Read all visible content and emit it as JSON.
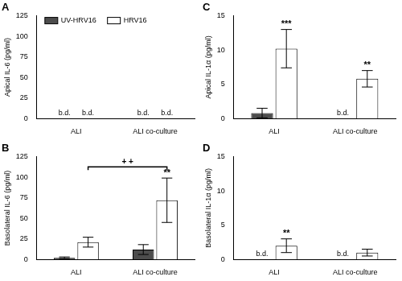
{
  "chart_data": [
    {
      "type": "bar",
      "title": "A",
      "y_label": "Apical IL-6 (pg/ml)",
      "categories": [
        "ALI",
        "ALI co-culture"
      ],
      "ylim": [
        0,
        125
      ],
      "yticks": [
        0,
        25,
        50,
        75,
        100,
        125
      ],
      "grid": false,
      "legend": "upper left",
      "series": [
        {
          "name": "UV-HRV16",
          "color": "#4d4d4d",
          "values": [
            null,
            null
          ],
          "errors": [
            null,
            null
          ],
          "value_labels": [
            "b.d.",
            "b.d."
          ]
        },
        {
          "name": "HRV16",
          "color": "#ffffff",
          "values": [
            null,
            null
          ],
          "errors": [
            null,
            null
          ],
          "value_labels": [
            "b.d.",
            "b.d."
          ]
        }
      ]
    },
    {
      "type": "bar",
      "title": "B",
      "y_label": "Basolateral IL-6 (pg/ml)",
      "categories": [
        "ALI",
        "ALI co-culture"
      ],
      "ylim": [
        0,
        125
      ],
      "yticks": [
        0,
        25,
        50,
        75,
        100,
        125
      ],
      "grid": false,
      "series": [
        {
          "name": "UV-HRV16",
          "color": "#4d4d4d",
          "values": [
            2,
            12
          ],
          "errors": [
            1,
            6
          ]
        },
        {
          "name": "HRV16",
          "color": "#ffffff",
          "values": [
            21,
            72
          ],
          "errors": [
            6,
            27
          ],
          "annotations": [
            null,
            "**"
          ]
        }
      ],
      "brackets": [
        {
          "series": "HRV16",
          "categories": [
            "ALI",
            "ALI co-culture"
          ],
          "label": "+ +"
        }
      ]
    },
    {
      "type": "bar",
      "title": "C",
      "y_label": "Apical IL-1α (pg/ml)",
      "categories": [
        "ALI",
        "ALI co-culture"
      ],
      "ylim": [
        0,
        15
      ],
      "yticks": [
        0,
        5,
        10,
        15
      ],
      "grid": false,
      "series": [
        {
          "name": "UV-HRV16",
          "color": "#4d4d4d",
          "values": [
            0.8,
            null
          ],
          "errors": [
            0.7,
            null
          ],
          "value_labels": [
            null,
            "b.d."
          ]
        },
        {
          "name": "HRV16",
          "color": "#ffffff",
          "values": [
            10.2,
            5.8
          ],
          "errors": [
            2.8,
            1.2
          ],
          "annotations": [
            "***",
            "**"
          ]
        }
      ]
    },
    {
      "type": "bar",
      "title": "D",
      "y_label": "Basolateral IL-1α (pg/ml)",
      "categories": [
        "ALI",
        "ALI co-culture"
      ],
      "ylim": [
        0,
        15
      ],
      "yticks": [
        0,
        5,
        10,
        15
      ],
      "grid": false,
      "series": [
        {
          "name": "UV-HRV16",
          "color": "#4d4d4d",
          "values": [
            null,
            null
          ],
          "errors": [
            null,
            null
          ],
          "value_labels": [
            "b.d.",
            "b.d."
          ]
        },
        {
          "name": "HRV16",
          "color": "#ffffff",
          "values": [
            2.0,
            1.0
          ],
          "errors": [
            1.0,
            0.5
          ],
          "annotations": [
            "**",
            null
          ]
        }
      ]
    }
  ]
}
